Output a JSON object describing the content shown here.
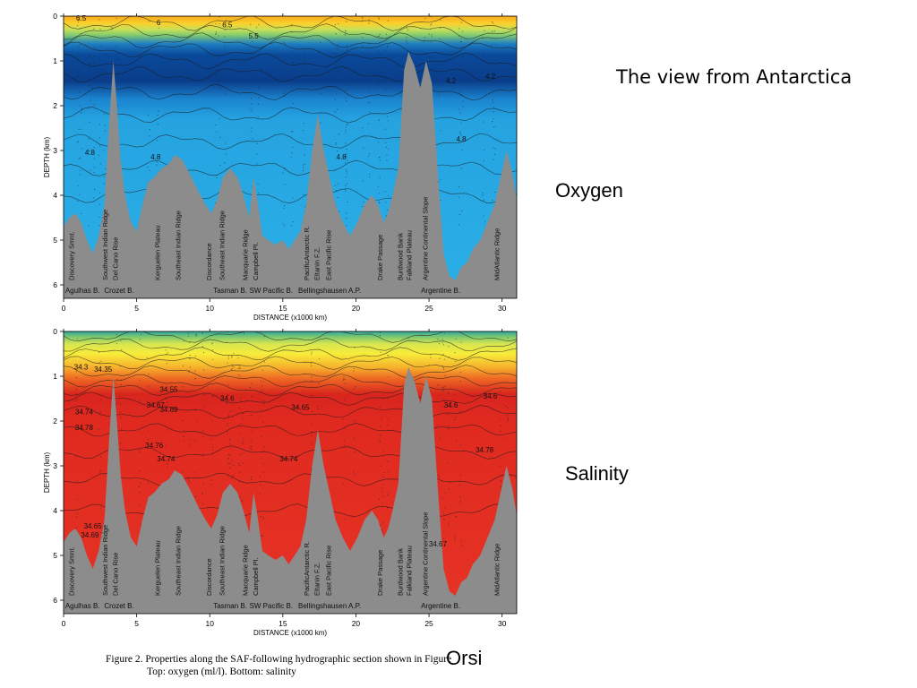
{
  "slide": {
    "title": "The view from Antarctica",
    "label_oxygen": "Oxygen",
    "label_salinity": "Salinity",
    "author": "Orsi",
    "caption_line1": "Figure 2.  Properties along the SAF-following hydrographic section shown in Figure",
    "caption_line2": "Top: oxygen (ml/l).  Bottom: salinity"
  },
  "chart_data": [
    {
      "type": "heatmap",
      "title": "",
      "xlabel": "DISTANCE (x1000 km)",
      "ylabel": "DEPTH (km)",
      "xlim": [
        0,
        31
      ],
      "ylim": [
        6.3,
        0
      ],
      "x_ticks": [
        0,
        5,
        10,
        15,
        20,
        25,
        30
      ],
      "y_ticks": [
        0,
        1,
        2,
        3,
        4,
        5,
        6
      ],
      "contour_labels": [
        {
          "x": 1.2,
          "y": 0.1,
          "text": "6.5"
        },
        {
          "x": 6.5,
          "y": 0.2,
          "text": "6"
        },
        {
          "x": 11.2,
          "y": 0.25,
          "text": "6.5"
        },
        {
          "x": 13.0,
          "y": 0.5,
          "text": "5.5"
        },
        {
          "x": 1.8,
          "y": 3.1,
          "text": "4.8"
        },
        {
          "x": 6.3,
          "y": 3.2,
          "text": "4.8"
        },
        {
          "x": 19.0,
          "y": 3.2,
          "text": "4.8"
        },
        {
          "x": 26.5,
          "y": 1.5,
          "text": "4.2"
        },
        {
          "x": 29.2,
          "y": 1.4,
          "text": "4.2"
        },
        {
          "x": 27.2,
          "y": 2.8,
          "text": "4.8"
        }
      ],
      "topography_labels": [
        {
          "x": 0.7,
          "text": "Discovery Smnt."
        },
        {
          "x": 3.0,
          "text": "Southwest Indian Ridge"
        },
        {
          "x": 3.7,
          "text": "Del Cano Rise"
        },
        {
          "x": 6.6,
          "text": "Kerguelen Plateau"
        },
        {
          "x": 8.0,
          "text": "Southeast Indian Ridge"
        },
        {
          "x": 10.1,
          "text": "Discordance"
        },
        {
          "x": 11.0,
          "text": "Southeast Indian Ridge"
        },
        {
          "x": 12.6,
          "text": "Macquarie Ridge"
        },
        {
          "x": 13.3,
          "text": "Campbell Pl."
        },
        {
          "x": 16.8,
          "text": "PacificAntarctic R."
        },
        {
          "x": 17.5,
          "text": "Eltanin F.Z."
        },
        {
          "x": 18.3,
          "text": "East Pacific Rise"
        },
        {
          "x": 21.8,
          "text": "Drake Passage"
        },
        {
          "x": 23.2,
          "text": "Burdwood Bank"
        },
        {
          "x": 23.8,
          "text": "Falkland Plateau"
        },
        {
          "x": 24.9,
          "text": "Argentine Continental Slope"
        },
        {
          "x": 29.8,
          "text": "MidAtlantic Ridge"
        }
      ],
      "basin_labels": [
        {
          "x": 1.3,
          "text": "Agulhas B."
        },
        {
          "x": 3.8,
          "text": "Crozet B."
        },
        {
          "x": 11.4,
          "text": "Tasman B."
        },
        {
          "x": 14.2,
          "text": "SW Pacific B."
        },
        {
          "x": 18.2,
          "text": "Bellingshausen A.P."
        },
        {
          "x": 25.8,
          "text": "Argentine B."
        }
      ]
    },
    {
      "type": "heatmap",
      "title": "",
      "xlabel": "DISTANCE (x1000 km)",
      "ylabel": "DEPTH (km)",
      "xlim": [
        0,
        31
      ],
      "ylim": [
        6.3,
        0
      ],
      "x_ticks": [
        0,
        5,
        10,
        15,
        20,
        25,
        30
      ],
      "y_ticks": [
        0,
        1,
        2,
        3,
        4,
        5,
        6
      ],
      "contour_labels": [
        {
          "x": 1.2,
          "y": 0.85,
          "text": "34.3"
        },
        {
          "x": 2.7,
          "y": 0.9,
          "text": "34.35"
        },
        {
          "x": 7.2,
          "y": 1.35,
          "text": "34.55"
        },
        {
          "x": 11.2,
          "y": 1.55,
          "text": "34.6"
        },
        {
          "x": 6.3,
          "y": 1.7,
          "text": "34.67"
        },
        {
          "x": 7.2,
          "y": 1.8,
          "text": "34.69"
        },
        {
          "x": 16.2,
          "y": 1.75,
          "text": "34.65"
        },
        {
          "x": 1.4,
          "y": 1.85,
          "text": "34.74"
        },
        {
          "x": 1.4,
          "y": 2.2,
          "text": "34.78"
        },
        {
          "x": 6.2,
          "y": 2.6,
          "text": "34.76"
        },
        {
          "x": 7.0,
          "y": 2.9,
          "text": "34.74"
        },
        {
          "x": 15.4,
          "y": 2.9,
          "text": "34.74"
        },
        {
          "x": 26.5,
          "y": 1.7,
          "text": "34.6"
        },
        {
          "x": 29.2,
          "y": 1.5,
          "text": "34.6"
        },
        {
          "x": 28.8,
          "y": 2.7,
          "text": "34.78"
        },
        {
          "x": 1.8,
          "y": 4.6,
          "text": "34.69"
        },
        {
          "x": 2.0,
          "y": 4.4,
          "text": "34.65"
        },
        {
          "x": 25.6,
          "y": 4.8,
          "text": "34.67"
        }
      ],
      "topography_labels": [
        {
          "x": 0.7,
          "text": "Discovery Smnt."
        },
        {
          "x": 3.0,
          "text": "Southwest Indian Ridge"
        },
        {
          "x": 3.7,
          "text": "Del Cano Rise"
        },
        {
          "x": 6.6,
          "text": "Kerguelen Plateau"
        },
        {
          "x": 8.0,
          "text": "Southeast Indian Ridge"
        },
        {
          "x": 10.1,
          "text": "Discordance"
        },
        {
          "x": 11.0,
          "text": "Southeast Indian Ridge"
        },
        {
          "x": 12.6,
          "text": "Macquarie Ridge"
        },
        {
          "x": 13.3,
          "text": "Campbell Pl."
        },
        {
          "x": 16.8,
          "text": "PacificAntarctic R."
        },
        {
          "x": 17.5,
          "text": "Eltanin F.Z."
        },
        {
          "x": 18.3,
          "text": "East Pacific Rise"
        },
        {
          "x": 21.8,
          "text": "Drake Passage"
        },
        {
          "x": 23.2,
          "text": "Burdwood Bank"
        },
        {
          "x": 23.8,
          "text": "Falkland Plateau"
        },
        {
          "x": 24.9,
          "text": "Argentine Continental Slope"
        },
        {
          "x": 29.8,
          "text": "MidAtlantic Ridge"
        }
      ],
      "basin_labels": [
        {
          "x": 1.3,
          "text": "Agulhas B."
        },
        {
          "x": 3.8,
          "text": "Crozet B."
        },
        {
          "x": 11.4,
          "text": "Tasman B."
        },
        {
          "x": 14.2,
          "text": "SW Pacific B."
        },
        {
          "x": 18.2,
          "text": "Bellingshausen A.P."
        },
        {
          "x": 25.8,
          "text": "Argentine B."
        }
      ]
    }
  ]
}
